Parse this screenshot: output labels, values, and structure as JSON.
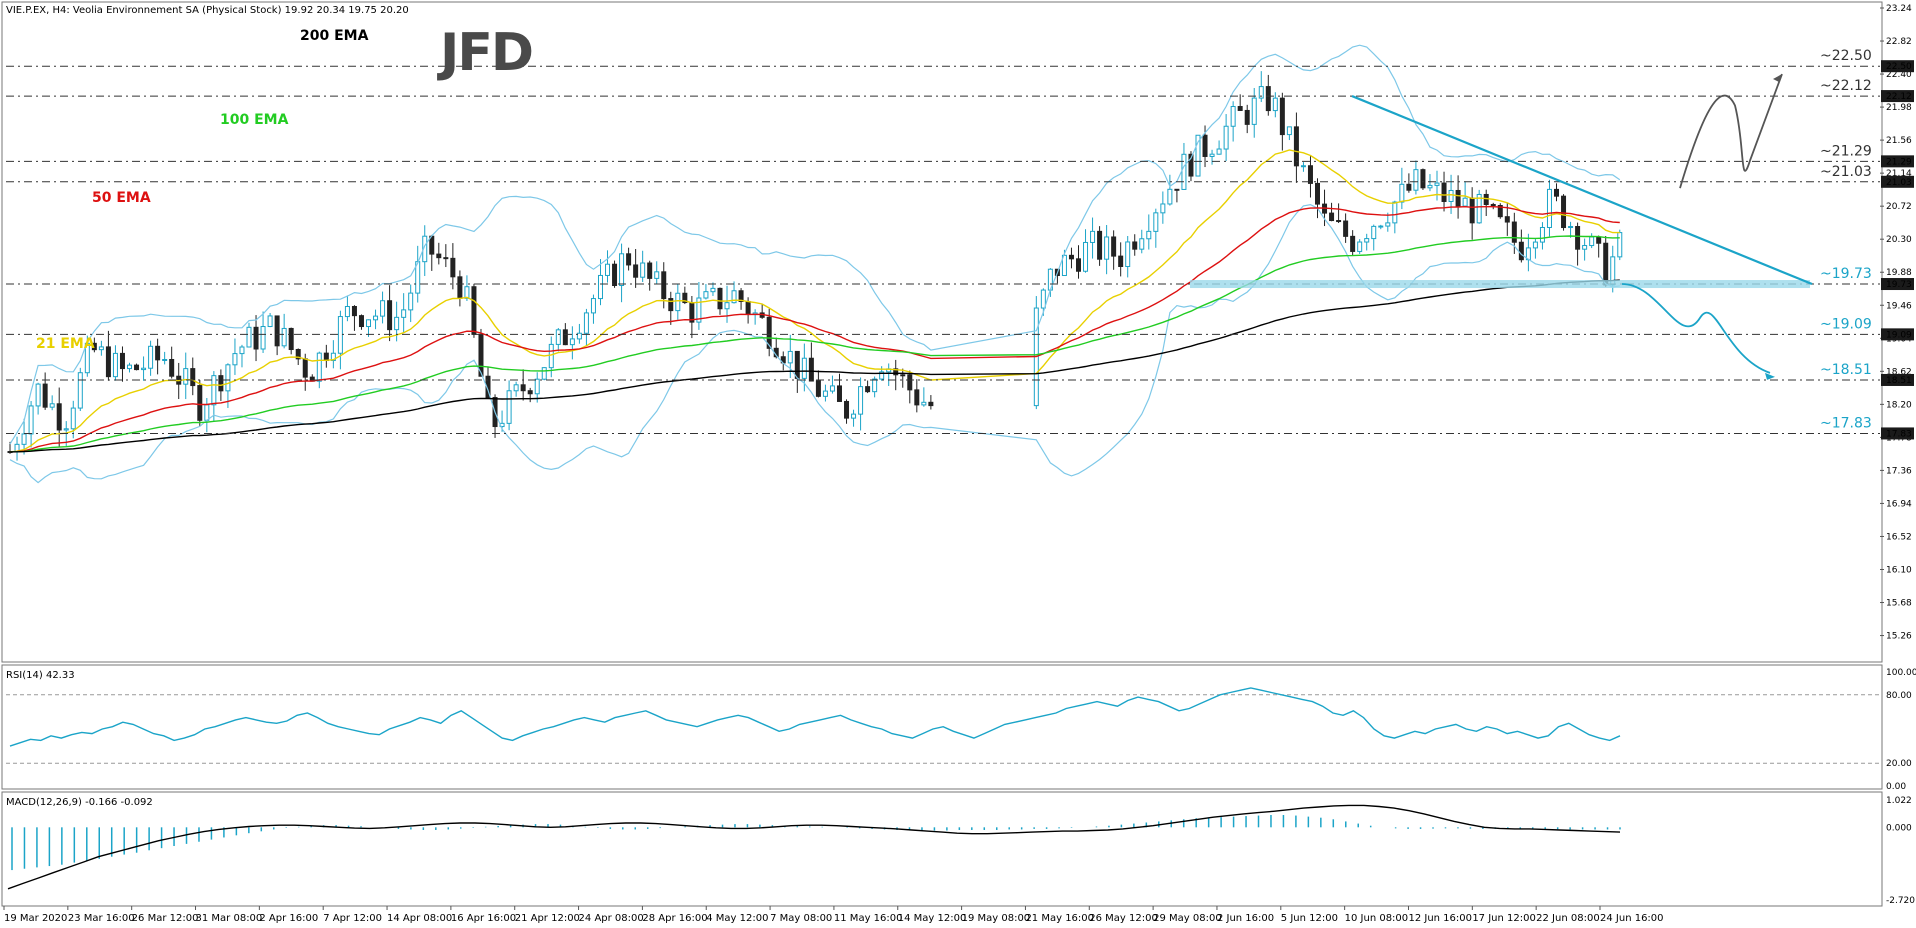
{
  "header": {
    "symbol_text": "VIE.P.EX, H4:  Veolia Environnement SA (Physical Stock)  19.92 20.34 19.75 20.20"
  },
  "logo_text": "JFD",
  "chart_data": {
    "type": "candlestick",
    "main": {
      "ylim": [
        15.0,
        23.24
      ],
      "y_ticks": [
        "23.24",
        "22.82",
        "22.40",
        "21.98",
        "21.56",
        "21.14",
        "20.72",
        "20.30",
        "19.88",
        "19.46",
        "19.04",
        "18.62",
        "18.20",
        "17.78",
        "17.36",
        "16.94",
        "16.52",
        "16.10",
        "15.68",
        "15.26"
      ],
      "levels": [
        {
          "value": 22.5,
          "label": "~22.50",
          "axis_label": "22.50",
          "color": "#333333"
        },
        {
          "value": 22.12,
          "label": "~22.12",
          "axis_label": "22.12",
          "color": "#333333"
        },
        {
          "value": 21.29,
          "label": "~21.29",
          "axis_label": "21.29",
          "color": "#333333"
        },
        {
          "value": 21.03,
          "label": "~21.03",
          "axis_label": "21.03",
          "color": "#333333"
        },
        {
          "value": 19.73,
          "label": "~19.73",
          "axis_label": "19.73",
          "color": "#1ba4c8"
        },
        {
          "value": 19.09,
          "label": "~19.09",
          "axis_label": "19.09",
          "color": "#1ba4c8"
        },
        {
          "value": 18.51,
          "label": "~18.51",
          "axis_label": "18.51",
          "color": "#1ba4c8"
        },
        {
          "value": 17.83,
          "label": "~17.83",
          "axis_label": "17.83",
          "color": "#1ba4c8"
        }
      ],
      "ema_labels": [
        {
          "text": "200 EMA",
          "color": "#000000"
        },
        {
          "text": "100 EMA",
          "color": "#22cc22"
        },
        {
          "text": "50 EMA",
          "color": "#dd1111"
        },
        {
          "text": "21 EMA",
          "color": "#e8d000"
        }
      ]
    },
    "x_ticks": [
      "19 Mar 2020",
      "23 Mar 16:00",
      "26 Mar 12:00",
      "31 Mar 08:00",
      "2 Apr 16:00",
      "7 Apr 12:00",
      "14 Apr 08:00",
      "16 Apr 16:00",
      "21 Apr 12:00",
      "24 Apr 08:00",
      "28 Apr 16:00",
      "4 May 12:00",
      "7 May 08:00",
      "11 May 16:00",
      "14 May 12:00",
      "19 May 08:00",
      "21 May 16:00",
      "26 May 12:00",
      "29 May 08:00",
      "2 Jun 16:00",
      "5 Jun 12:00",
      "10 Jun 08:00",
      "12 Jun 16:00",
      "17 Jun 12:00",
      "22 Jun 08:00",
      "24 Jun 16:00"
    ],
    "rsi": {
      "label": "RSI(14) 42.33",
      "ylim": [
        0,
        100
      ],
      "y_ticks": [
        "100.00",
        "80.00",
        "20.00",
        "0.00"
      ],
      "values": [
        35,
        38,
        41,
        40,
        44,
        42,
        45,
        47,
        46,
        50,
        52,
        56,
        54,
        50,
        46,
        44,
        40,
        42,
        45,
        50,
        52,
        55,
        58,
        60,
        58,
        56,
        55,
        57,
        62,
        64,
        60,
        55,
        52,
        50,
        48,
        46,
        45,
        50,
        53,
        56,
        60,
        58,
        55,
        62,
        66,
        60,
        54,
        48,
        42,
        40,
        44,
        47,
        50,
        52,
        55,
        58,
        60,
        58,
        56,
        60,
        62,
        64,
        66,
        62,
        58,
        56,
        54,
        52,
        55,
        58,
        60,
        62,
        60,
        56,
        52,
        48,
        50,
        54,
        56,
        58,
        60,
        62,
        58,
        55,
        52,
        50,
        46,
        44,
        42,
        46,
        50,
        52,
        48,
        45,
        42,
        46,
        50,
        54,
        56,
        58,
        60,
        62,
        64,
        68,
        70,
        72,
        74,
        72,
        70,
        75,
        78,
        76,
        74,
        70,
        66,
        68,
        72,
        76,
        80,
        82,
        84,
        86,
        84,
        82,
        80,
        78,
        76,
        74,
        70,
        64,
        62,
        66,
        60,
        50,
        44,
        42,
        45,
        48,
        46,
        50,
        52,
        54,
        50,
        48,
        52,
        50,
        46,
        48,
        45,
        42,
        44,
        52,
        55,
        50,
        45,
        42,
        40,
        44
      ]
    },
    "macd": {
      "label": "MACD(12,26,9) -0.166 -0.092",
      "ylim": [
        -2.72,
        1.022
      ],
      "y_ticks": [
        "1.022",
        "0.000",
        "-2.720"
      ],
      "hist": [
        -1.6,
        -1.55,
        -1.5,
        -1.45,
        -1.4,
        -1.32,
        -1.25,
        -1.18,
        -1.1,
        -1.02,
        -0.95,
        -0.86,
        -0.78,
        -0.7,
        -0.62,
        -0.54,
        -0.46,
        -0.38,
        -0.3,
        -0.22,
        -0.15,
        -0.08,
        -0.02,
        0.02,
        0.06,
        0.08,
        0.08,
        0.06,
        0.04,
        0.0,
        -0.03,
        -0.06,
        -0.08,
        -0.1,
        -0.1,
        -0.08,
        -0.05,
        -0.02,
        0.02,
        0.05,
        0.08,
        0.1,
        0.12,
        0.12,
        0.1,
        0.06,
        0.02,
        -0.02,
        -0.06,
        -0.08,
        -0.08,
        -0.06,
        -0.03,
        0.0,
        0.03,
        0.06,
        0.08,
        0.1,
        0.12,
        0.12,
        0.1,
        0.08,
        0.06,
        0.04,
        0.03,
        0.02,
        0.0,
        -0.02,
        -0.04,
        -0.06,
        -0.08,
        -0.1,
        -0.12,
        -0.12,
        -0.12,
        -0.12,
        -0.1,
        -0.1,
        -0.1,
        -0.1,
        -0.08,
        -0.08,
        -0.06,
        -0.06,
        -0.04,
        -0.02,
        0.0,
        0.03,
        0.06,
        0.1,
        0.14,
        0.18,
        0.22,
        0.26,
        0.3,
        0.34,
        0.36,
        0.38,
        0.4,
        0.42,
        0.44,
        0.46,
        0.46,
        0.44,
        0.4,
        0.36,
        0.3,
        0.22,
        0.14,
        0.06,
        0.0,
        -0.04,
        -0.06,
        -0.06,
        -0.05,
        -0.04,
        -0.04,
        -0.05,
        -0.06,
        -0.06,
        -0.06,
        -0.05,
        -0.05,
        -0.06,
        -0.07,
        -0.08,
        -0.08,
        -0.08,
        -0.08,
        -0.08
      ],
      "signal": [
        -2.3,
        -2.1,
        -1.9,
        -1.7,
        -1.5,
        -1.3,
        -1.1,
        -0.95,
        -0.8,
        -0.65,
        -0.5,
        -0.38,
        -0.26,
        -0.16,
        -0.08,
        -0.02,
        0.03,
        0.06,
        0.08,
        0.08,
        0.06,
        0.03,
        0.0,
        -0.03,
        -0.04,
        -0.02,
        0.02,
        0.06,
        0.1,
        0.14,
        0.16,
        0.16,
        0.14,
        0.1,
        0.06,
        0.02,
        0.0,
        0.02,
        0.06,
        0.1,
        0.14,
        0.16,
        0.16,
        0.14,
        0.1,
        0.06,
        0.02,
        -0.02,
        -0.04,
        -0.04,
        -0.02,
        0.02,
        0.06,
        0.08,
        0.08,
        0.06,
        0.03,
        0.0,
        -0.03,
        -0.06,
        -0.1,
        -0.14,
        -0.18,
        -0.22,
        -0.24,
        -0.24,
        -0.22,
        -0.2,
        -0.18,
        -0.16,
        -0.14,
        -0.14,
        -0.12,
        -0.1,
        -0.06,
        0.0,
        0.06,
        0.14,
        0.22,
        0.3,
        0.38,
        0.44,
        0.5,
        0.55,
        0.6,
        0.66,
        0.72,
        0.76,
        0.8,
        0.82,
        0.82,
        0.78,
        0.72,
        0.62,
        0.5,
        0.36,
        0.22,
        0.1,
        0.0,
        -0.04,
        -0.06,
        -0.06,
        -0.08,
        -0.1,
        -0.12,
        -0.14,
        -0.16,
        -0.18
      ]
    }
  }
}
